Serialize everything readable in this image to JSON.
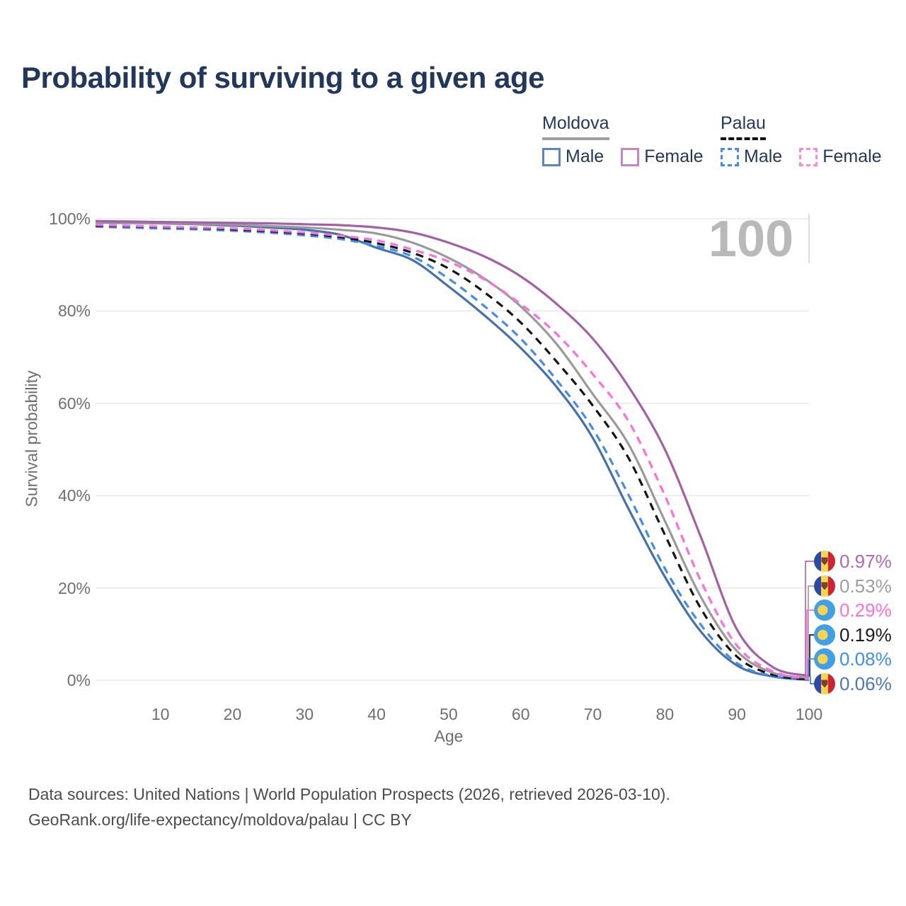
{
  "title": "Probability of surviving to a given age",
  "watermark": "100",
  "legend": {
    "groups": [
      {
        "label": "Moldova",
        "line_style": "solid",
        "underline_color": "#9e9e9e",
        "items": [
          {
            "label": "Male",
            "color": "#5b85c2",
            "dashed": false
          },
          {
            "label": "Female",
            "color": "#c687c0",
            "dashed": false
          }
        ]
      },
      {
        "label": "Palau",
        "line_style": "dashed",
        "underline_color": "#111111",
        "items": [
          {
            "label": "Male",
            "color": "#3f8df0",
            "dashed": true
          },
          {
            "label": "Female",
            "color": "#ff85e4",
            "dashed": true
          }
        ]
      }
    ]
  },
  "y_axis": {
    "label": "Survival probability",
    "ticks": [
      {
        "label": "100%",
        "value": 100
      },
      {
        "label": "80%",
        "value": 80
      },
      {
        "label": "60%",
        "value": 60
      },
      {
        "label": "40%",
        "value": 40
      },
      {
        "label": "20%",
        "value": 20
      },
      {
        "label": "0%",
        "value": 0
      }
    ]
  },
  "x_axis": {
    "label": "Age",
    "ticks": [
      {
        "label": "10",
        "value": 10
      },
      {
        "label": "20",
        "value": 20
      },
      {
        "label": "30",
        "value": 30
      },
      {
        "label": "40",
        "value": 40
      },
      {
        "label": "50",
        "value": 50
      },
      {
        "label": "60",
        "value": 60
      },
      {
        "label": "70",
        "value": 70
      },
      {
        "label": "80",
        "value": 80
      },
      {
        "label": "90",
        "value": 90
      },
      {
        "label": "100",
        "value": 100
      }
    ]
  },
  "end_labels": [
    {
      "value": "0.97%",
      "color": "#b06ab0",
      "flag": "moldova",
      "series": "Moldova Female"
    },
    {
      "value": "0.53%",
      "color": "#9e9e9e",
      "flag": "moldova",
      "series": "Moldova"
    },
    {
      "value": "0.29%",
      "color": "#ff70df",
      "flag": "palau",
      "series": "Palau Female"
    },
    {
      "value": "0.19%",
      "color": "#1a1a1a",
      "flag": "palau",
      "series": "Palau"
    },
    {
      "value": "0.08%",
      "color": "#3d8eef",
      "flag": "palau",
      "series": "Palau Male"
    },
    {
      "value": "0.06%",
      "color": "#4a77bd",
      "flag": "moldova",
      "series": "Moldova Male"
    }
  ],
  "footer": {
    "line1": "Data sources: United Nations | World Population Prospects (2026, retrieved 2026-03-10).",
    "line2": "GeoRank.org/life-expectancy/moldova/palau | CC BY"
  },
  "chart_data": {
    "type": "line",
    "title": "Probability of surviving to a given age",
    "xlabel": "Age",
    "ylabel": "Survival probability",
    "x_range": [
      1,
      100
    ],
    "ylim_percent": [
      0,
      100
    ],
    "grid": "horizontal",
    "hover_age_indicator": 100,
    "ages": [
      1,
      5,
      10,
      15,
      20,
      25,
      30,
      35,
      40,
      45,
      50,
      55,
      60,
      65,
      70,
      75,
      80,
      85,
      90,
      95,
      100
    ],
    "series": [
      {
        "name": "Moldova Male",
        "country": "Moldova",
        "sex": "male",
        "style": "solid",
        "color": "#4470b4",
        "end_value_percent": 0.06,
        "values": [
          99.2,
          99.1,
          99.0,
          98.8,
          98.5,
          98.1,
          97.6,
          96.5,
          93.7,
          91.0,
          85.3,
          79.0,
          72.0,
          63.5,
          52.5,
          37.0,
          22.4,
          10.5,
          3.2,
          0.8,
          0.06
        ]
      },
      {
        "name": "Palau Male",
        "country": "Palau",
        "sex": "male",
        "style": "dashed",
        "color": "#3f8df0",
        "end_value_percent": 0.08,
        "values": [
          98.3,
          98.1,
          97.9,
          97.7,
          97.4,
          97.0,
          96.4,
          95.6,
          94.1,
          91.8,
          87.0,
          81.0,
          74.0,
          65.0,
          54.5,
          40.0,
          24.2,
          12.0,
          3.7,
          0.9,
          0.08
        ]
      },
      {
        "name": "Palau",
        "country": "Palau",
        "sex": "both",
        "style": "dashed",
        "color": "#141414",
        "end_value_percent": 0.19,
        "values": [
          98.5,
          98.4,
          98.2,
          98.0,
          97.7,
          97.3,
          96.8,
          96.0,
          94.7,
          92.6,
          89.2,
          84.0,
          77.5,
          69.0,
          59.5,
          48.0,
          31.5,
          15.5,
          5.1,
          1.2,
          0.19
        ]
      },
      {
        "name": "Moldova",
        "country": "Moldova",
        "sex": "both",
        "style": "solid",
        "color": "#9a9a9a",
        "end_value_percent": 0.53,
        "values": [
          99.3,
          99.2,
          99.1,
          98.9,
          98.7,
          98.4,
          98.1,
          97.6,
          96.8,
          94.8,
          91.5,
          87.0,
          81.0,
          72.8,
          62.0,
          51.0,
          34.5,
          18.0,
          6.3,
          1.6,
          0.53
        ]
      },
      {
        "name": "Palau Female",
        "country": "Palau",
        "sex": "female",
        "style": "dashed",
        "color": "#ff6ede",
        "end_value_percent": 0.29,
        "values": [
          98.7,
          98.5,
          98.3,
          98.1,
          97.9,
          97.5,
          97.0,
          96.3,
          95.3,
          93.3,
          90.7,
          86.8,
          81.5,
          75.0,
          66.3,
          56.0,
          40.0,
          21.5,
          7.5,
          1.9,
          0.29
        ]
      },
      {
        "name": "Moldova Female",
        "country": "Moldova",
        "sex": "female",
        "style": "solid",
        "color": "#a55fa8",
        "end_value_percent": 0.97,
        "values": [
          99.5,
          99.4,
          99.3,
          99.2,
          99.1,
          99.0,
          98.8,
          98.6,
          98.1,
          97.0,
          94.8,
          91.8,
          87.5,
          81.5,
          74.0,
          63.5,
          50.0,
          31.0,
          11.0,
          2.8,
          0.97
        ]
      }
    ]
  }
}
